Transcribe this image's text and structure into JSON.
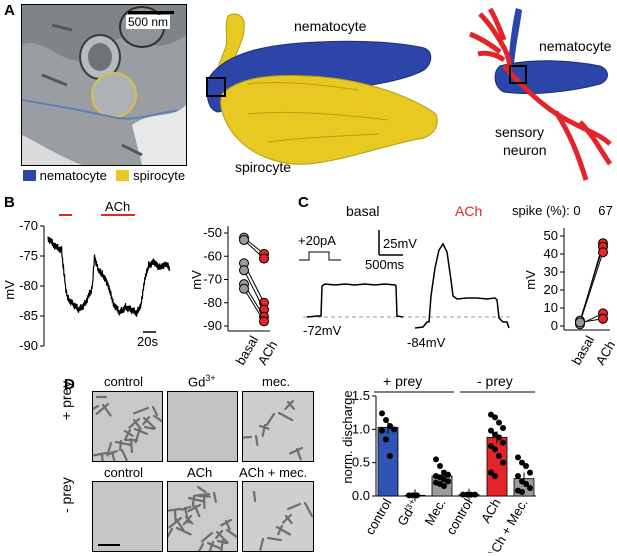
{
  "panel_labels": {
    "a": "A",
    "b": "B",
    "c": "C",
    "d": "D"
  },
  "panel_a": {
    "scale_bar": "500 nm",
    "legend": [
      {
        "label": "nematocyte",
        "color": "#2b46a8"
      },
      {
        "label": "spirocyte",
        "color": "#e8c922"
      }
    ],
    "labels_3d": {
      "nematocyte_1": "nematocyte",
      "spirocyte": "spirocyte",
      "nematocyte_2": "nematocyte",
      "sensory_neuron": "sensory\nneuron"
    },
    "colors": {
      "nematocyte": "#2b46a8",
      "spirocyte": "#e8c922",
      "neuron": "#e32428"
    }
  },
  "panel_b": {
    "ach_label": "ACh",
    "y_unit": "mV",
    "y_ticks": [
      "-70",
      "-75",
      "-80",
      "-85",
      "-90"
    ],
    "time_bar": "20s",
    "scatter": {
      "y_ticks": [
        "-50",
        "-60",
        "-70",
        "-80",
        "-90"
      ],
      "y_unit": "mV",
      "x_labels": [
        "basal",
        "ACh"
      ]
    }
  },
  "panel_c": {
    "basal_label": "basal",
    "ach_label": "ACh",
    "spike_label": "spike (%): 0",
    "spike_ach": "67",
    "stim_label": "+20pA",
    "scale_v": "25mV",
    "scale_t": "500ms",
    "vrest_basal": "-72mV",
    "vrest_ach": "-84mV",
    "scatter": {
      "y_ticks": [
        "50",
        "40",
        "30",
        "20",
        "10",
        "0"
      ],
      "y_unit": "mV",
      "x_labels": [
        "basal",
        "ACh"
      ]
    }
  },
  "panel_d": {
    "row_labels": [
      "+ prey",
      "- prey"
    ],
    "row1": [
      "control",
      "Gd3+",
      "mec."
    ],
    "row2": [
      "control",
      "ACh",
      "ACh + mec."
    ],
    "chart": {
      "group_labels": [
        "+ prey",
        "- prey"
      ],
      "y_label": "norm. discharge",
      "y_ticks": [
        "1.5",
        "1.0",
        "0.5",
        "0.0"
      ]
    }
  },
  "chart_data": [
    {
      "type": "line",
      "x": [
        0,
        8,
        14,
        18,
        20,
        26,
        32,
        38,
        44,
        46,
        48,
        52,
        56,
        60,
        64,
        68,
        74,
        80,
        86,
        92,
        96,
        100,
        104,
        110,
        114,
        118,
        122,
        126
      ],
      "y": [
        -72,
        -73.5,
        -74,
        -80,
        -82,
        -83,
        -84,
        -83,
        -81,
        -80,
        -75,
        -77.5,
        -78,
        -79,
        -81,
        -83,
        -84.5,
        -83.5,
        -84,
        -84.5,
        -83,
        -79,
        -76.5,
        -76,
        -77,
        -76.5,
        -76.5,
        -77
      ],
      "ylabel": "mV",
      "ylim": [
        -90,
        -70
      ]
    },
    {
      "type": "line",
      "categories": [
        "basal",
        "ACh"
      ],
      "series": [
        {
          "values": [
            -52,
            -59
          ]
        },
        {
          "values": [
            -53,
            -61
          ]
        },
        {
          "values": [
            -63,
            -80
          ]
        },
        {
          "values": [
            -66,
            -83
          ]
        },
        {
          "values": [
            -72,
            -86
          ]
        },
        {
          "values": [
            -74,
            -88
          ]
        }
      ],
      "ylabel": "mV",
      "ylim": [
        -90,
        -50
      ]
    },
    {
      "type": "line",
      "categories": [
        "basal",
        "ACh"
      ],
      "series": [
        {
          "values": [
            2,
            46
          ]
        },
        {
          "values": [
            3,
            44
          ]
        },
        {
          "values": [
            2,
            41
          ]
        },
        {
          "values": [
            1,
            7
          ]
        },
        {
          "values": [
            2,
            4
          ]
        }
      ],
      "ylabel": "mV",
      "ylim": [
        0,
        50
      ]
    },
    {
      "type": "bar",
      "categories": [
        "control",
        "Gd3+",
        "Mec.",
        "control",
        "ACh",
        "ACh + Mec."
      ],
      "values": [
        1.03,
        0.01,
        0.3,
        0.02,
        0.88,
        0.26
      ],
      "colors": [
        "#3053b5",
        "#3053b5",
        "#9a9a9a",
        "#3053b5",
        "#e32428",
        "#9a9a9a"
      ],
      "points": [
        [
          1.24,
          1.14,
          1.05,
          1.0,
          0.98,
          0.85,
          0.6
        ],
        [
          0.01,
          0.01,
          0.01
        ],
        [
          0.55,
          0.45,
          0.35,
          0.32,
          0.3,
          0.28,
          0.25,
          0.22,
          0.2,
          0.18,
          0.15
        ],
        [
          0.02,
          0.02,
          0.02,
          0.02
        ],
        [
          1.22,
          1.18,
          1.1,
          1.02,
          0.98,
          0.92,
          0.88,
          0.8,
          0.75,
          0.7,
          0.6,
          0.5,
          0.35,
          0.3
        ],
        [
          0.58,
          0.5,
          0.45,
          0.35,
          0.3,
          0.22,
          0.18,
          0.12,
          0.08,
          0.06
        ]
      ],
      "ylabel": "norm. discharge",
      "ylim": [
        0,
        1.5
      ]
    }
  ]
}
